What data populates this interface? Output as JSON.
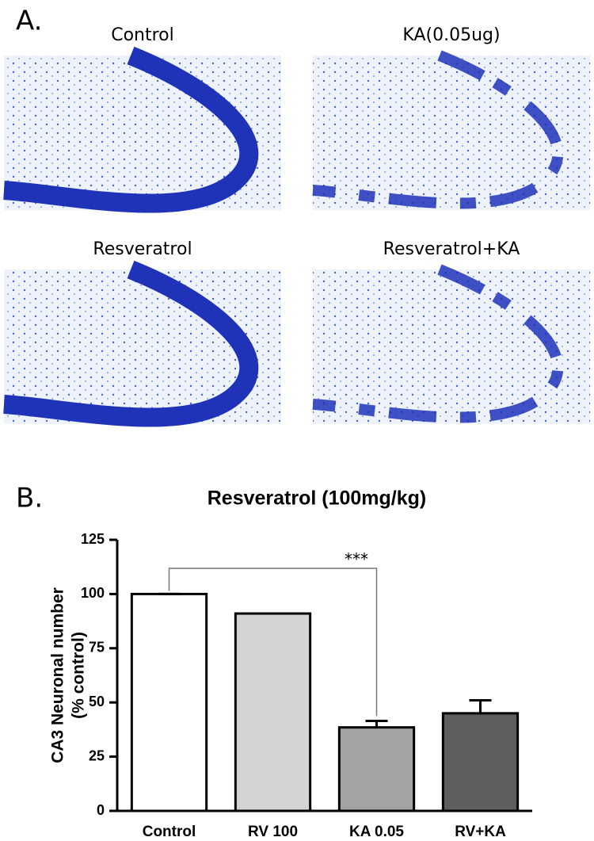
{
  "panel_a": {
    "label": "A.",
    "images": [
      {
        "label": "Control"
      },
      {
        "label": "KA(0.05ug)"
      },
      {
        "label": "Resveratrol"
      },
      {
        "label": "Resveratrol+KA"
      }
    ]
  },
  "panel_b": {
    "label": "B."
  },
  "chart_data": {
    "type": "bar",
    "title": "Resveratrol (100mg/kg)",
    "ylabel": [
      "CA3 Neuronal number",
      "(% control)"
    ],
    "categories": [
      "Control",
      "RV 100",
      "KA 0.05",
      "RV+KA"
    ],
    "values": [
      100,
      91,
      38.5,
      45
    ],
    "errors": [
      0,
      0,
      3,
      6
    ],
    "colors": [
      "#ffffff",
      "#d4d4d4",
      "#a3a3a3",
      "#5e5e5e"
    ],
    "ylim": [
      0,
      125
    ],
    "yticks": [
      0,
      25,
      50,
      75,
      100,
      125
    ],
    "annotation": "***"
  }
}
